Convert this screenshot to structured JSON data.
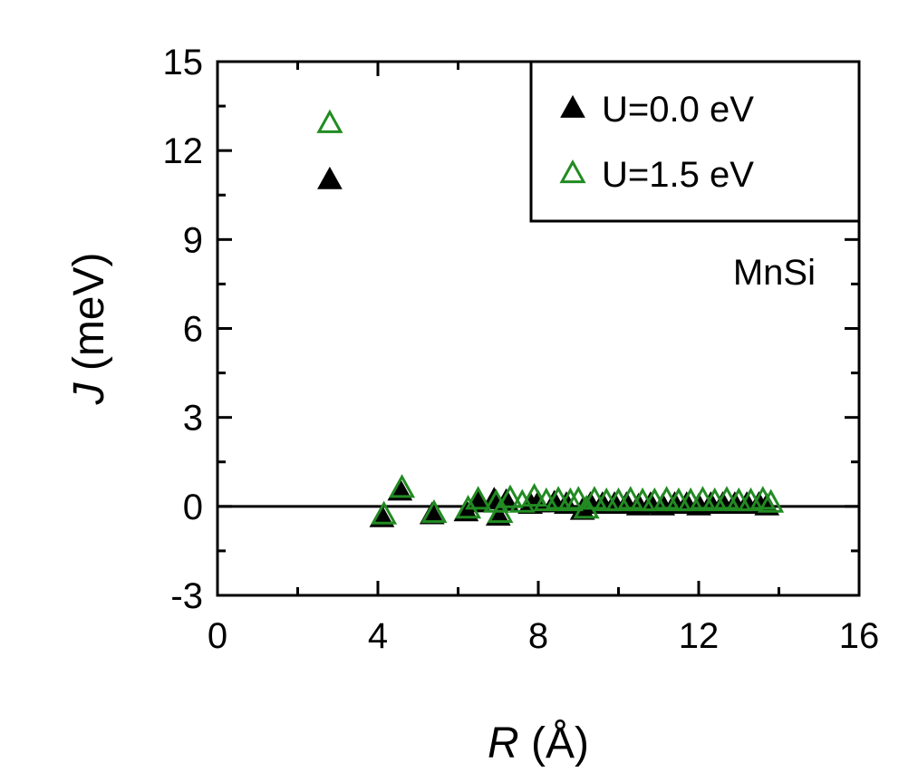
{
  "chart_data": {
    "type": "scatter",
    "xlabel": {
      "symbol": "R",
      "unit": " (Å)"
    },
    "ylabel": {
      "symbol": "J",
      "unit": " (meV)"
    },
    "xlim": [
      0,
      16
    ],
    "ylim": [
      -3,
      15
    ],
    "xticks": [
      0,
      4,
      8,
      12,
      16
    ],
    "xtick_labels": [
      "0",
      "4",
      "8",
      "12",
      "16"
    ],
    "yticks": [
      -3,
      0,
      3,
      6,
      9,
      12,
      15
    ],
    "ytick_labels": [
      "-3",
      "0",
      "3",
      "6",
      "9",
      "12",
      "15"
    ],
    "zero_line": true,
    "legend_position": "top-right",
    "annotation": "MnSi",
    "series": [
      {
        "name": "U=0.0 eV",
        "marker": "filled-triangle",
        "color": "#000000",
        "points": [
          [
            2.8,
            11.0
          ],
          [
            4.1,
            -0.4
          ],
          [
            4.55,
            0.5
          ],
          [
            5.35,
            -0.3
          ],
          [
            6.2,
            -0.2
          ],
          [
            6.5,
            0.1
          ],
          [
            6.9,
            0.2
          ],
          [
            7.0,
            -0.35
          ],
          [
            7.2,
            0.15
          ],
          [
            7.8,
            0.05
          ],
          [
            8.0,
            0.1
          ],
          [
            8.4,
            0.1
          ],
          [
            8.7,
            0.05
          ],
          [
            9.1,
            -0.15
          ],
          [
            9.3,
            0.05
          ],
          [
            9.6,
            0.05
          ],
          [
            9.9,
            0.05
          ],
          [
            10.2,
            0.05
          ],
          [
            10.5,
            0.0
          ],
          [
            10.8,
            0.05
          ],
          [
            11.1,
            0.0
          ],
          [
            11.4,
            0.05
          ],
          [
            11.7,
            0.05
          ],
          [
            12.0,
            0.0
          ],
          [
            12.3,
            0.05
          ],
          [
            12.6,
            0.05
          ],
          [
            12.9,
            0.05
          ],
          [
            13.2,
            0.05
          ],
          [
            13.5,
            0.05
          ],
          [
            13.7,
            0.0
          ]
        ]
      },
      {
        "name": "U=1.5 eV",
        "marker": "open-triangle",
        "color": "#228b22",
        "points": [
          [
            2.8,
            12.9
          ],
          [
            4.15,
            -0.3
          ],
          [
            4.6,
            0.6
          ],
          [
            5.4,
            -0.25
          ],
          [
            6.25,
            -0.1
          ],
          [
            6.5,
            0.2
          ],
          [
            6.95,
            0.1
          ],
          [
            7.05,
            -0.25
          ],
          [
            7.3,
            0.25
          ],
          [
            7.6,
            0.1
          ],
          [
            7.9,
            0.3
          ],
          [
            8.2,
            0.15
          ],
          [
            8.5,
            0.2
          ],
          [
            8.8,
            0.15
          ],
          [
            9.0,
            0.2
          ],
          [
            9.2,
            -0.1
          ],
          [
            9.4,
            0.2
          ],
          [
            9.7,
            0.15
          ],
          [
            10.0,
            0.15
          ],
          [
            10.3,
            0.2
          ],
          [
            10.6,
            0.15
          ],
          [
            10.9,
            0.15
          ],
          [
            11.2,
            0.2
          ],
          [
            11.5,
            0.15
          ],
          [
            11.8,
            0.15
          ],
          [
            12.1,
            0.2
          ],
          [
            12.4,
            0.15
          ],
          [
            12.7,
            0.2
          ],
          [
            13.0,
            0.15
          ],
          [
            13.3,
            0.15
          ],
          [
            13.6,
            0.2
          ],
          [
            13.8,
            0.1
          ]
        ]
      }
    ]
  }
}
